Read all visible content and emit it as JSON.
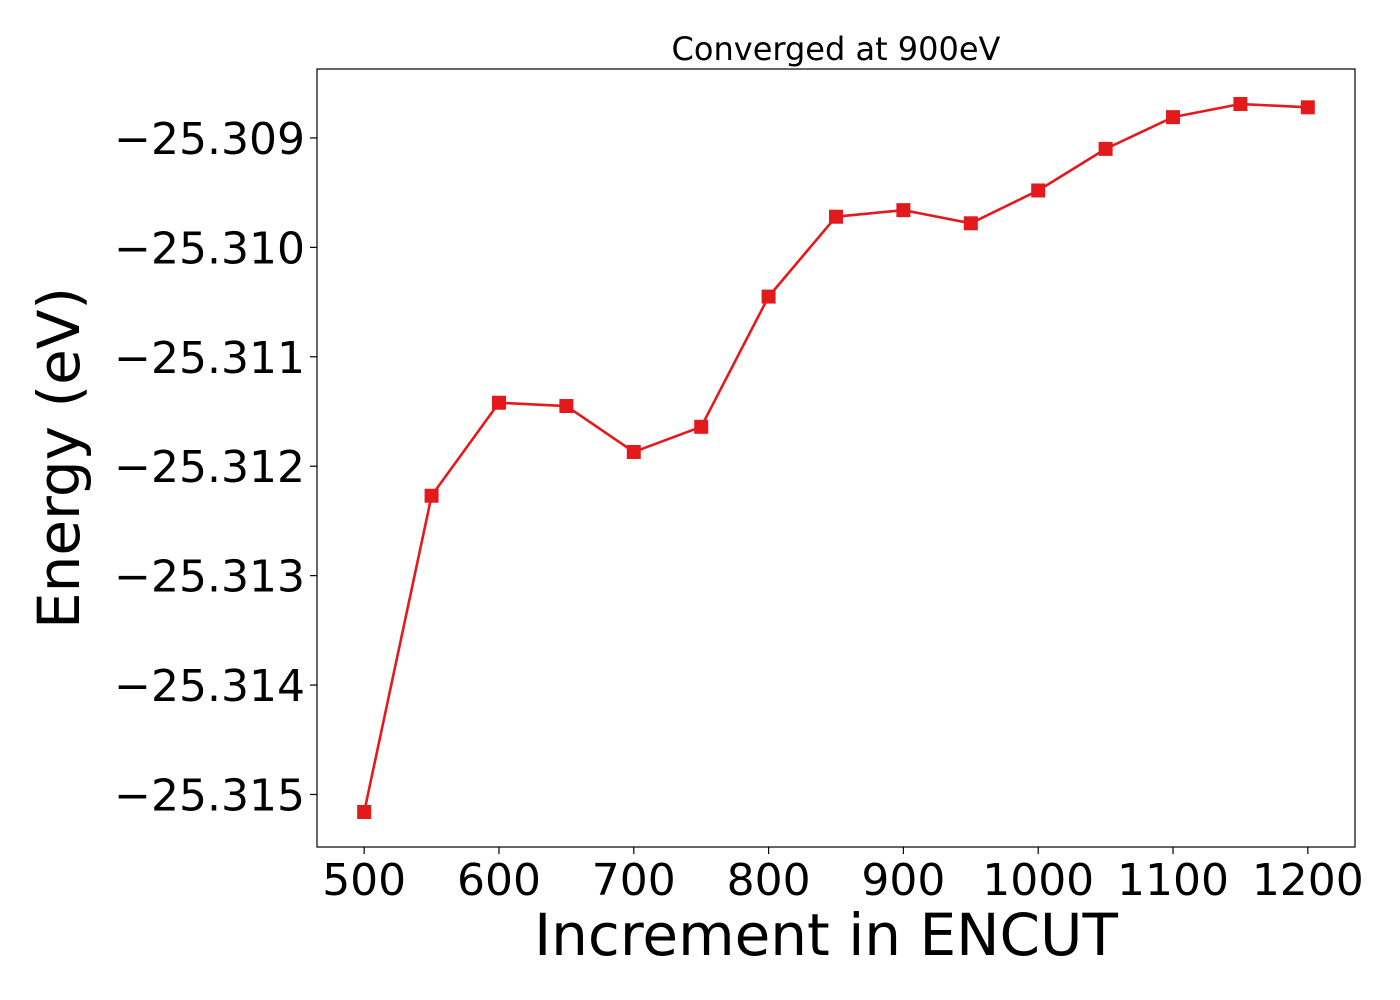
{
  "chart_data": {
    "type": "line",
    "title": "Converged at 900eV",
    "xlabel": "Increment in ENCUT",
    "ylabel": "Energy (eV)",
    "x": [
      500,
      550,
      600,
      650,
      700,
      750,
      800,
      850,
      900,
      950,
      1000,
      1050,
      1100,
      1150,
      1200
    ],
    "series": [
      {
        "values": [
          -25.31516,
          -25.31227,
          -25.31142,
          -25.31145,
          -25.31187,
          -25.31164,
          -25.31045,
          -25.30972,
          -25.30966,
          -25.30978,
          -25.30948,
          -25.3091,
          -25.30881,
          -25.30869,
          -25.30872
        ],
        "color": "#e31a1c",
        "marker": "square"
      }
    ],
    "xlim": [
      465,
      1235
    ],
    "ylim": [
      -25.31548,
      -25.30837
    ],
    "xticks": [
      500,
      600,
      700,
      800,
      900,
      1000,
      1100,
      1200
    ],
    "yticks": [
      -25.315,
      -25.314,
      -25.313,
      -25.312,
      -25.311,
      -25.31,
      -25.309
    ],
    "xtick_labels": [
      "500",
      "600",
      "700",
      "800",
      "900",
      "1000",
      "1100",
      "1200"
    ],
    "ytick_labels": [
      "−25.315",
      "−25.314",
      "−25.313",
      "−25.312",
      "−25.311",
      "−25.310",
      "−25.309"
    ],
    "grid": false,
    "legend": "none"
  }
}
